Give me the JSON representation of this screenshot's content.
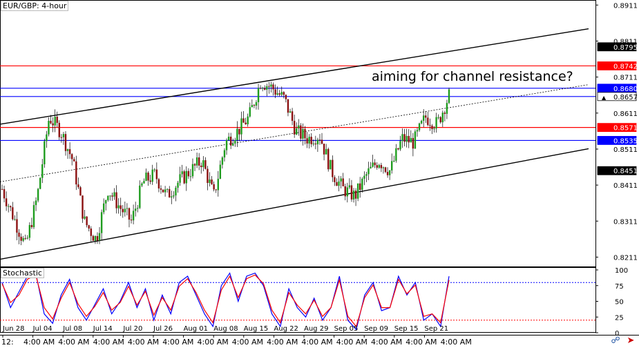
{
  "chart_title": "EUR/GBP: 4-hour",
  "stochastic_title": "Stochastic",
  "annotation": "aiming for channel resistance?",
  "colors": {
    "candle_up": "#1e9c1e",
    "candle_down": "#8b1010",
    "resistance": "#ff0000",
    "support": "#0000ff",
    "channel": "#000000",
    "stoch_main": "#0000ff",
    "stoch_signal": "#ff0000",
    "stoch_levels": "#0000ff",
    "price_tag_red": "#ff0000",
    "price_tag_blue": "#0000ff",
    "price_tag_black": "#000000"
  },
  "chart_data": [
    {
      "type": "candlestick",
      "title": "EUR/GBP: 4-hour",
      "y_ticks": [
        "0.8911",
        "0.8811",
        "0.8711",
        "0.8611",
        "0.8511",
        "0.8411",
        "0.8311",
        "0.8211"
      ],
      "ylim": [
        0.8185,
        0.8925
      ],
      "x_date_ticks": [
        "Jun 28",
        "Jul 04",
        "Jul 08",
        "Jul 14",
        "Jul 20",
        "Jul 26",
        "Aug 01",
        "Aug 08",
        "Aug 15",
        "Aug 22",
        "Aug 29",
        "Sep 05",
        "Sep 09",
        "Sep 15",
        "Sep 21"
      ],
      "x_time_ticks": [
        "12:",
        "4:00 AM",
        "4:00 AM",
        "4:00 AM",
        "4:00 AM",
        "4:00 AM",
        "4:00 AM",
        "4:00 AM",
        "4:00 AM",
        "4:00 AM",
        "4:00 AM",
        "4:00 AM",
        "4:00 AM",
        "4:00 AM"
      ],
      "price_path": [
        0.84,
        0.832,
        0.824,
        0.838,
        0.86,
        0.856,
        0.848,
        0.831,
        0.826,
        0.84,
        0.835,
        0.831,
        0.842,
        0.844,
        0.838,
        0.842,
        0.845,
        0.848,
        0.838,
        0.853,
        0.856,
        0.86,
        0.87,
        0.868,
        0.865,
        0.856,
        0.854,
        0.855,
        0.845,
        0.84,
        0.838,
        0.844,
        0.848,
        0.845,
        0.854,
        0.853,
        0.86,
        0.858,
        0.866
      ],
      "horizontal_levels": [
        {
          "value": 0.8742,
          "label": "0.8742",
          "color": "red"
        },
        {
          "value": 0.868,
          "label": "0.8680",
          "color": "blue"
        },
        {
          "value": 0.8657,
          "label": "0.8657",
          "color": "blue"
        },
        {
          "value": 0.8571,
          "label": "0.8571",
          "color": "red"
        },
        {
          "value": 0.8535,
          "label": "0.8535",
          "color": "blue"
        }
      ],
      "channel_lines": [
        {
          "name": "upper",
          "start": 0.858,
          "end": 0.8845,
          "style": "solid"
        },
        {
          "name": "middle",
          "start": 0.842,
          "end": 0.869,
          "style": "dotted"
        },
        {
          "name": "lower",
          "start": 0.8205,
          "end": 0.8512,
          "style": "solid"
        }
      ],
      "price_tags": [
        {
          "value": 0.8795,
          "label": "0.8795",
          "style": "black"
        },
        {
          "value": 0.8742,
          "label": "0.8742",
          "style": "red"
        },
        {
          "value": 0.868,
          "label": "0.8680",
          "style": "blue"
        },
        {
          "value": 0.8657,
          "label": "0.8657",
          "style": "current"
        },
        {
          "value": 0.8571,
          "label": "0.8571",
          "style": "red"
        },
        {
          "value": 0.8535,
          "label": "0.8535",
          "style": "blue"
        },
        {
          "value": 0.8451,
          "label": "0.8451",
          "style": "black"
        }
      ]
    },
    {
      "type": "line",
      "title": "Stochastic",
      "ylim": [
        0,
        100
      ],
      "y_ticks": [
        "100",
        "75",
        "50",
        "25",
        "0"
      ],
      "levels": [
        80,
        20
      ],
      "series": [
        {
          "values": [
            80,
            40,
            65,
            90,
            95,
            30,
            15,
            60,
            85,
            40,
            20,
            45,
            70,
            30,
            50,
            80,
            40,
            70,
            20,
            60,
            30,
            80,
            90,
            60,
            30,
            10,
            75,
            95,
            50,
            90,
            95,
            75,
            30,
            10,
            70,
            40,
            25,
            55,
            20,
            40,
            90,
            20,
            5,
            60,
            80,
            35,
            40,
            90,
            60,
            80,
            20,
            30,
            10,
            90
          ]
        },
        {
          "values": [
            78,
            48,
            60,
            85,
            92,
            40,
            22,
            55,
            80,
            46,
            26,
            42,
            64,
            36,
            48,
            74,
            44,
            66,
            28,
            56,
            36,
            74,
            86,
            64,
            36,
            16,
            68,
            90,
            56,
            86,
            92,
            78,
            36,
            16,
            64,
            44,
            30,
            52,
            26,
            40,
            84,
            26,
            10,
            56,
            76,
            40,
            40,
            85,
            62,
            76,
            26,
            30,
            16,
            84
          ]
        }
      ]
    }
  ],
  "app_icons": [
    "link-icon",
    "arrow-icon"
  ]
}
